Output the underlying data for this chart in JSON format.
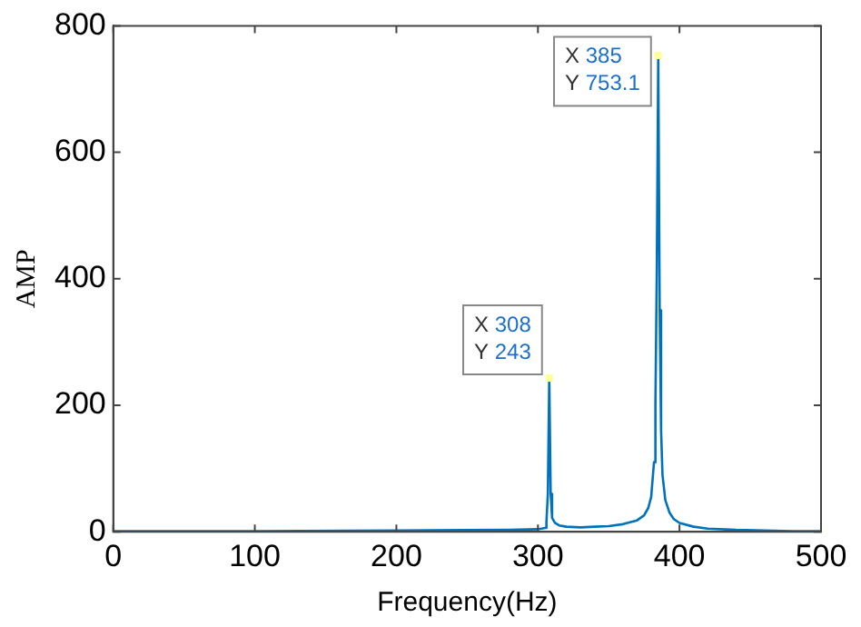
{
  "chart_data": {
    "type": "line",
    "xlabel": "Frequency(Hz)",
    "ylabel": "AMP",
    "xlim": [
      0,
      500
    ],
    "xticks": [
      0,
      100,
      200,
      300,
      400,
      500
    ],
    "ylim": [
      0,
      800
    ],
    "yticks": [
      0,
      200,
      400,
      600,
      800
    ],
    "grid": false,
    "legend": false,
    "marker": "none",
    "series": [
      {
        "color": "#0072bd",
        "x": [
          0,
          100,
          200,
          280,
          300,
          305,
          306,
          307,
          308,
          309,
          310,
          312,
          315,
          320,
          330,
          340,
          350,
          360,
          370,
          375,
          378,
          380,
          382,
          383,
          384,
          385,
          386,
          387,
          388,
          390,
          393,
          396,
          400,
          410,
          420,
          440,
          460,
          480,
          500
        ],
        "values": [
          1,
          1,
          2,
          3,
          4,
          6,
          15,
          60,
          243,
          60,
          22,
          14,
          10,
          8,
          7,
          8,
          9,
          12,
          18,
          26,
          38,
          55,
          110,
          200,
          420,
          753.1,
          350,
          160,
          90,
          50,
          30,
          20,
          14,
          8,
          5,
          3,
          2,
          1,
          1
        ]
      }
    ],
    "annotations": [
      {
        "text": "X 308\nY 243",
        "x": 308,
        "y": 243
      },
      {
        "text": "X 385\nY 753.1",
        "x": 385,
        "y": 753.1
      }
    ]
  }
}
